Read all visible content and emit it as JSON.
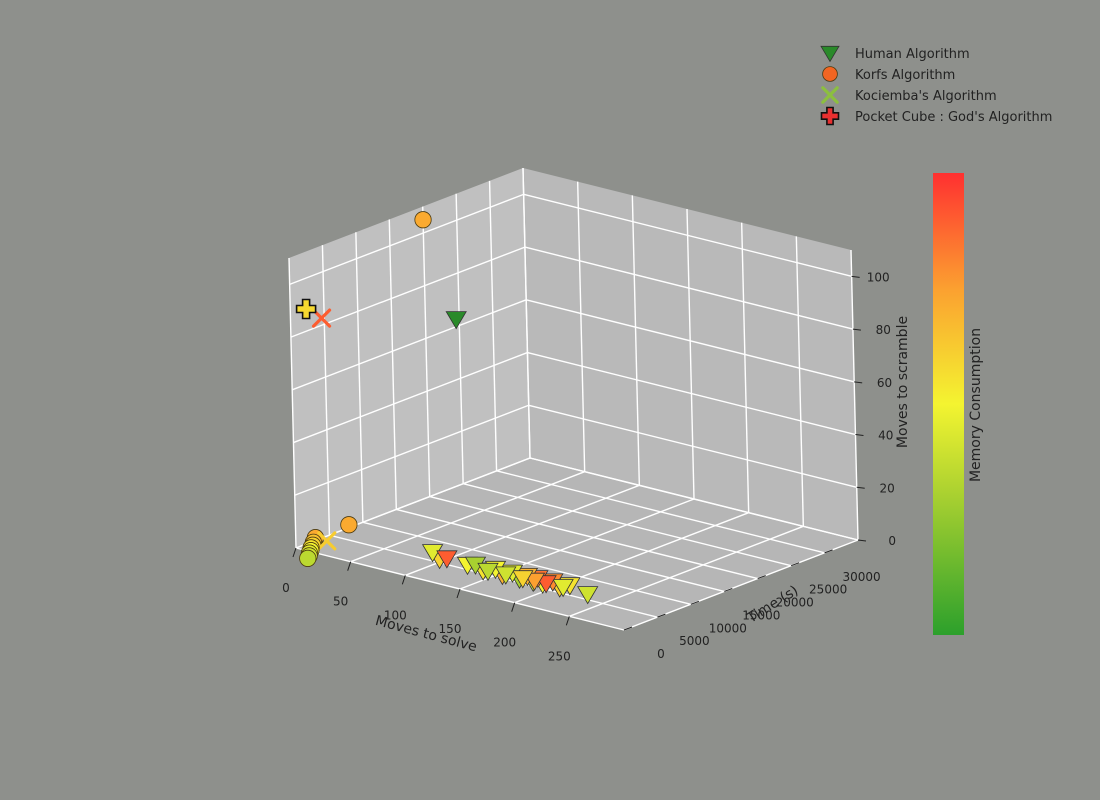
{
  "chart_data": {
    "type": "scatter",
    "projection": "3d",
    "xlabel": "Moves to solve",
    "ylabel": "Time (s)",
    "zlabel": "Moves to scramble",
    "colorbar_label": "Memory Consumption",
    "xlim": [
      0,
      300
    ],
    "ylim": [
      0,
      35000
    ],
    "zlim": [
      0,
      110
    ],
    "xticks": [
      "0",
      "50",
      "100",
      "150",
      "200",
      "250"
    ],
    "yticks": [
      "0",
      "5000",
      "10000",
      "15000",
      "20000",
      "25000",
      "30000"
    ],
    "zticks": [
      "0",
      "20",
      "40",
      "60",
      "80",
      "100"
    ],
    "grid": true,
    "legend_position": "top-right",
    "colormap": [
      "#2ca02c",
      "#a8d030",
      "#f4f430",
      "#fba030",
      "#ff3030"
    ],
    "series": [
      {
        "name": "Human Algorithm",
        "marker": "triangle-down",
        "color": "#2a8a2a",
        "points": [
          [
            150,
            400,
            102,
            0.05
          ],
          [
            120,
            900,
            10,
            0.45
          ],
          [
            126,
            950,
            8,
            0.6
          ],
          [
            133,
            900,
            9,
            0.9
          ],
          [
            150,
            1200,
            8,
            0.5
          ],
          [
            158,
            1100,
            9,
            0.3
          ],
          [
            163,
            1400,
            7,
            0.55
          ],
          [
            170,
            1000,
            8,
            0.35
          ],
          [
            175,
            1300,
            9,
            0.5
          ],
          [
            180,
            1500,
            7,
            0.7
          ],
          [
            185,
            1200,
            8,
            0.4
          ],
          [
            190,
            1400,
            9,
            0.45
          ],
          [
            195,
            1600,
            7,
            0.3
          ],
          [
            200,
            1300,
            8,
            0.6
          ],
          [
            203,
            1500,
            9,
            0.7
          ],
          [
            207,
            1700,
            7,
            0.4
          ],
          [
            210,
            1400,
            8,
            0.75
          ],
          [
            212,
            1600,
            9,
            0.85
          ],
          [
            215,
            1800,
            7,
            0.5
          ],
          [
            220,
            1500,
            8,
            0.9
          ],
          [
            225,
            1700,
            9,
            0.8
          ],
          [
            230,
            1900,
            7,
            0.6
          ],
          [
            235,
            1600,
            8,
            0.45
          ],
          [
            255,
            2000,
            7,
            0.4
          ],
          [
            240,
            1800,
            9,
            0.55
          ]
        ]
      },
      {
        "name": "Korfs Algorithm",
        "marker": "circle",
        "color": "#f26522",
        "points": [
          [
            0,
            20000,
            105,
            0.72
          ],
          [
            38,
            1800,
            11,
            0.72
          ],
          [
            15,
            500,
            5,
            0.72
          ],
          [
            14,
            600,
            4,
            0.7
          ],
          [
            13,
            500,
            3,
            0.65
          ],
          [
            13,
            400,
            2,
            0.6
          ],
          [
            12,
            300,
            1,
            0.55
          ],
          [
            12,
            250,
            0,
            0.5
          ],
          [
            11,
            200,
            -1,
            0.45
          ],
          [
            11,
            150,
            -2,
            0.4
          ],
          [
            10,
            100,
            -3,
            0.35
          ]
        ]
      },
      {
        "name": "Kociemba's Algorithm",
        "marker": "x",
        "color": "#8cbf3f",
        "points": [
          [
            28,
            100,
            90,
            0.9
          ],
          [
            26,
            400,
            5,
            0.62
          ]
        ]
      },
      {
        "name": "Pocket Cube : God's Algorithm",
        "marker": "plus",
        "color": "#e83030",
        "points": [
          [
            14,
            100,
            92,
            0.58
          ]
        ]
      }
    ]
  }
}
